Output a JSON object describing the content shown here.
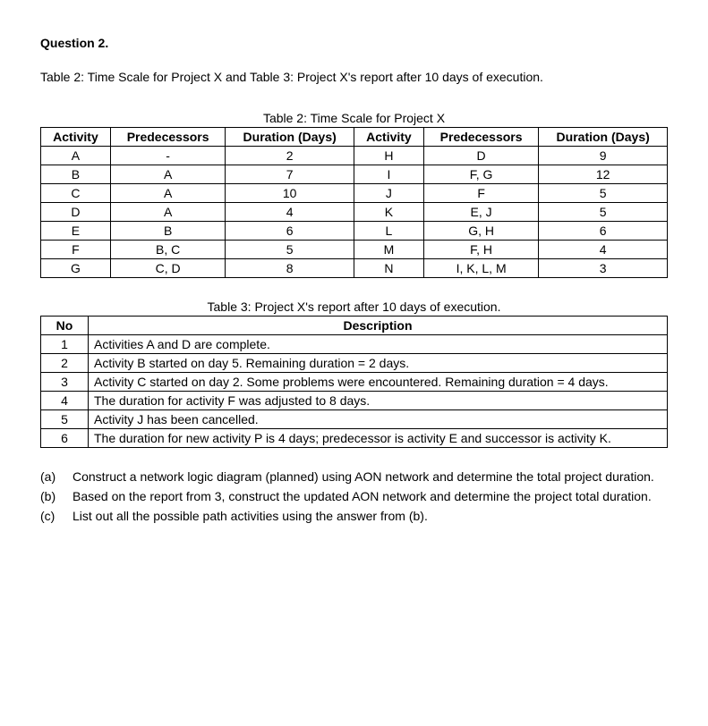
{
  "heading": "Question 2.",
  "intro": "Table 2: Time Scale for Project X and Table 3: Project X's report after 10 days of execution.",
  "table2": {
    "caption": "Table 2: Time Scale for Project X",
    "headers": {
      "activity": "Activity",
      "predecessors": "Predecessors",
      "duration": "Duration (Days)"
    },
    "rows": [
      {
        "a": "A",
        "p": "-",
        "d": "2",
        "a2": "H",
        "p2": "D",
        "d2": "9"
      },
      {
        "a": "B",
        "p": "A",
        "d": "7",
        "a2": "I",
        "p2": "F, G",
        "d2": "12"
      },
      {
        "a": "C",
        "p": "A",
        "d": "10",
        "a2": "J",
        "p2": "F",
        "d2": "5"
      },
      {
        "a": "D",
        "p": "A",
        "d": "4",
        "a2": "K",
        "p2": "E, J",
        "d2": "5"
      },
      {
        "a": "E",
        "p": "B",
        "d": "6",
        "a2": "L",
        "p2": "G, H",
        "d2": "6"
      },
      {
        "a": "F",
        "p": "B, C",
        "d": "5",
        "a2": "M",
        "p2": "F, H",
        "d2": "4"
      },
      {
        "a": "G",
        "p": "C, D",
        "d": "8",
        "a2": "N",
        "p2": "I, K, L, M",
        "d2": "3"
      }
    ]
  },
  "table3": {
    "caption": "Table 3: Project X's report after 10 days of execution.",
    "headers": {
      "no": "No",
      "desc": "Description"
    },
    "rows": [
      {
        "no": "1",
        "desc": "Activities A and D are complete."
      },
      {
        "no": "2",
        "desc": "Activity B started on day 5. Remaining duration = 2 days."
      },
      {
        "no": "3",
        "desc": "Activity C started on day 2. Some problems were encountered. Remaining duration = 4 days."
      },
      {
        "no": "4",
        "desc": "The duration for activity F was adjusted to 8 days."
      },
      {
        "no": "5",
        "desc": "Activity J has been cancelled."
      },
      {
        "no": "6",
        "desc": "The duration for new activity P is 4 days; predecessor is activity E and successor is activity K."
      }
    ]
  },
  "parts": [
    {
      "label": "(a)",
      "text": "Construct a network logic diagram (planned) using AON network and determine the total project duration."
    },
    {
      "label": "(b)",
      "text": "Based on the report from 3, construct the updated AON network and determine the project total duration."
    },
    {
      "label": "(c)",
      "text": "List out all the possible path activities using the answer from (b)."
    }
  ]
}
